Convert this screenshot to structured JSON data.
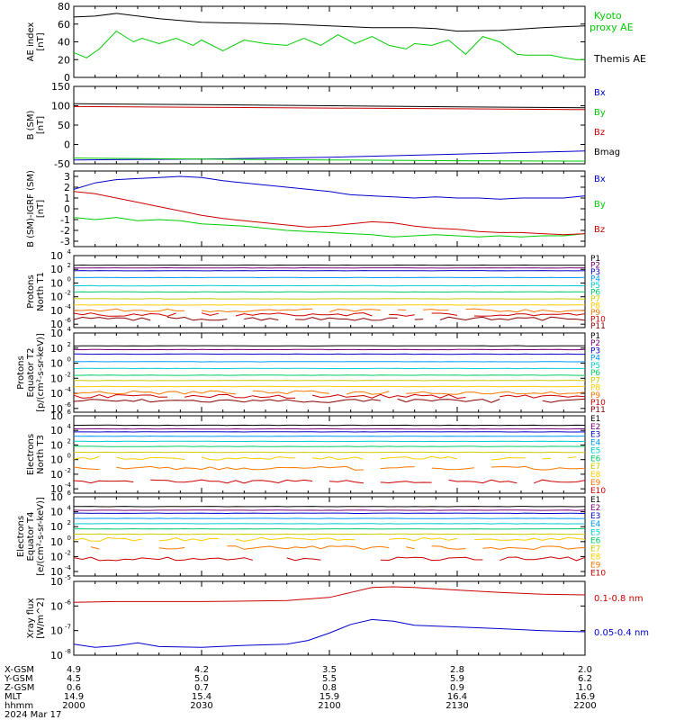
{
  "colors": {
    "black": "#000000",
    "green": "#00cc00",
    "blue": "#0000cc",
    "red": "#cc0000",
    "ch": [
      "#000000",
      "#7a007a",
      "#0000cc",
      "#0099ff",
      "#00cccc",
      "#00cc66",
      "#cccc00",
      "#ffcc00",
      "#ff7700",
      "#cc0000",
      "#880000"
    ]
  },
  "time_axis": {
    "ticks": [
      2000,
      2030,
      2100,
      2130,
      2200
    ],
    "ephemeris": [
      {
        "label": "X-GSM",
        "values": [
          "4.9",
          "4.2",
          "3.5",
          "2.8",
          "2.0"
        ]
      },
      {
        "label": "Y-GSM",
        "values": [
          "4.5",
          "5.0",
          "5.5",
          "5.9",
          "6.2"
        ]
      },
      {
        "label": "Z-GSM",
        "values": [
          "0.6",
          "0.7",
          "0.8",
          "0.9",
          "1.0"
        ]
      },
      {
        "label": "MLT",
        "values": [
          "14.9",
          "15.4",
          "15.9",
          "16.4",
          "16.9"
        ]
      },
      {
        "label": "hhmm",
        "values": [
          "2000",
          "2030",
          "2100",
          "2130",
          "2200"
        ]
      }
    ],
    "date": "2024 Mar 17"
  },
  "chart_data": [
    {
      "type": "line",
      "ylabel": [
        "AE index",
        "[nT]"
      ],
      "ylim": [
        0,
        80
      ],
      "yticks": [
        "0",
        "20",
        "40",
        "60",
        "80"
      ],
      "series": [
        {
          "name": "Kyoto proxy AE",
          "color": "green",
          "x": [
            0,
            3,
            6,
            10,
            14,
            16,
            20,
            24,
            28,
            30,
            35,
            40,
            45,
            50,
            54,
            58,
            62,
            66,
            70,
            74,
            78,
            80,
            84,
            88,
            92,
            96,
            100,
            104,
            106,
            108,
            112,
            115,
            118,
            120
          ],
          "y": [
            28,
            22,
            32,
            52,
            40,
            44,
            38,
            44,
            36,
            42,
            30,
            42,
            38,
            36,
            44,
            36,
            48,
            38,
            46,
            36,
            32,
            38,
            36,
            42,
            26,
            46,
            40,
            26,
            25,
            25,
            25,
            22,
            20,
            20
          ]
        },
        {
          "name": "Themis AE",
          "color": "black",
          "x": [
            0,
            5,
            10,
            20,
            30,
            40,
            50,
            60,
            70,
            80,
            85,
            90,
            100,
            110,
            120
          ],
          "y": [
            68,
            69,
            72,
            66,
            62,
            61,
            60,
            58,
            56,
            56,
            55,
            52,
            53,
            56,
            58
          ]
        }
      ]
    },
    {
      "type": "line",
      "ylabel": [
        "B (SM)",
        "[nT]"
      ],
      "ylim": [
        -50,
        150
      ],
      "yticks": [
        "-50",
        "0",
        "50",
        "100",
        "150"
      ],
      "series": [
        {
          "name": "Bx",
          "color": "blue",
          "x": [
            0,
            30,
            60,
            90,
            120
          ],
          "y": [
            -40,
            -38,
            -33,
            -25,
            -17
          ]
        },
        {
          "name": "By",
          "color": "green",
          "x": [
            0,
            30,
            60,
            90,
            120
          ],
          "y": [
            -35,
            -38,
            -40,
            -42,
            -43
          ]
        },
        {
          "name": "Bz",
          "color": "red",
          "x": [
            0,
            30,
            60,
            90,
            120
          ],
          "y": [
            98,
            96,
            94,
            92,
            90
          ]
        },
        {
          "name": "Bmag",
          "color": "black",
          "x": [
            0,
            30,
            60,
            90,
            120
          ],
          "y": [
            105,
            103,
            100,
            97,
            95
          ]
        }
      ]
    },
    {
      "type": "line",
      "ylabel": [
        "B (SM)-IGRF (SM)",
        "[nT]"
      ],
      "ylim": [
        -3.5,
        3.5
      ],
      "yticks": [
        "-3",
        "-2",
        "-1",
        "0",
        "1",
        "2",
        "3"
      ],
      "series": [
        {
          "name": "Bx",
          "color": "blue",
          "x": [
            0,
            5,
            10,
            15,
            20,
            25,
            30,
            35,
            40,
            45,
            50,
            55,
            60,
            65,
            70,
            75,
            80,
            85,
            90,
            95,
            100,
            105,
            110,
            115,
            120
          ],
          "y": [
            1.8,
            2.4,
            2.7,
            2.8,
            2.9,
            3.0,
            2.9,
            2.6,
            2.4,
            2.2,
            2.0,
            1.8,
            1.6,
            1.3,
            1.2,
            1.1,
            1.0,
            1.1,
            1.0,
            1.0,
            0.9,
            1.0,
            1.0,
            1.0,
            1.2
          ]
        },
        {
          "name": "By",
          "color": "green",
          "x": [
            0,
            5,
            10,
            15,
            20,
            25,
            30,
            35,
            40,
            45,
            50,
            55,
            60,
            65,
            70,
            75,
            80,
            85,
            90,
            95,
            100,
            105,
            110,
            115,
            120
          ],
          "y": [
            -0.8,
            -1.0,
            -0.8,
            -1.1,
            -1.0,
            -1.1,
            -1.4,
            -1.5,
            -1.6,
            -1.8,
            -2.0,
            -2.1,
            -2.2,
            -2.3,
            -2.4,
            -2.6,
            -2.5,
            -2.4,
            -2.5,
            -2.6,
            -2.5,
            -2.6,
            -2.5,
            -2.5,
            -2.3
          ]
        },
        {
          "name": "Bz",
          "color": "red",
          "x": [
            0,
            5,
            10,
            15,
            20,
            25,
            30,
            35,
            40,
            45,
            50,
            55,
            60,
            65,
            70,
            75,
            80,
            85,
            90,
            95,
            100,
            105,
            110,
            115,
            120
          ],
          "y": [
            1.6,
            1.4,
            1.0,
            0.6,
            0.2,
            -0.2,
            -0.6,
            -0.9,
            -1.1,
            -1.3,
            -1.5,
            -1.7,
            -1.6,
            -1.4,
            -1.2,
            -1.3,
            -1.6,
            -1.8,
            -1.9,
            -2.1,
            -2.2,
            -2.2,
            -2.3,
            -2.4,
            -2.3
          ]
        }
      ]
    },
    {
      "type": "line",
      "ylabel": [
        "Protons",
        "North T1"
      ],
      "log": true,
      "ylim": [
        -6.5,
        4
      ],
      "yticks": [
        "10",
        "10",
        "10",
        "10",
        "10",
        "10"
      ],
      "ytick_exponents": [
        "4",
        "2",
        "0",
        "-2",
        "-4",
        "-6"
      ],
      "channels": [
        "P1",
        "P2",
        "P3",
        "P4",
        "P5",
        "P6",
        "P7",
        "P8",
        "P9",
        "P10",
        "P11"
      ],
      "levels": [
        2.6,
        2.2,
        1.8,
        0.8,
        -0.4,
        -1.3,
        -2.3,
        -3.2,
        -4.0,
        -4.6,
        -5.2
      ]
    },
    {
      "type": "line",
      "ylabel": [
        "Protons",
        "Equator T2",
        "[p/(cm²-s-sr-keV)]"
      ],
      "log": true,
      "ylim": [
        -6.5,
        4
      ],
      "yticks": [
        "10",
        "10",
        "10",
        "10",
        "10",
        "10"
      ],
      "ytick_exponents": [
        "4",
        "2",
        "0",
        "-2",
        "-4",
        "-6"
      ],
      "channels": [
        "P1",
        "P2",
        "P3",
        "P4",
        "P5",
        "P6",
        "P7",
        "P8",
        "P9",
        "P10",
        "P11"
      ],
      "levels": [
        2.3,
        1.8,
        1.2,
        0.2,
        -0.7,
        -1.6,
        -2.3,
        -3.1,
        -3.9,
        -4.4,
        -5.0
      ]
    },
    {
      "type": "line",
      "ylabel": [
        "Electrons",
        "North T3"
      ],
      "log": true,
      "ylim": [
        -4.6,
        6
      ],
      "yticks": [
        "10",
        "10",
        "10",
        "10",
        "10",
        "10"
      ],
      "ytick_exponents": [
        "6",
        "4",
        "2",
        "0",
        "-2",
        "-4"
      ],
      "channels": [
        "E1",
        "E2",
        "E3",
        "E4",
        "E5",
        "E6",
        "E7",
        "E8",
        "E9",
        "E10"
      ],
      "levels": [
        4.7,
        4.2,
        3.8,
        3.2,
        2.5,
        1.8,
        1.0,
        0.2,
        -1.2,
        -3.0
      ]
    },
    {
      "type": "line",
      "ylabel": [
        "Electrons",
        "Equator T4",
        "[e/(cm²-s-sr-keV)]"
      ],
      "log": true,
      "ylim": [
        -4.6,
        6
      ],
      "yticks": [
        "10",
        "10",
        "10",
        "10",
        "10",
        "10"
      ],
      "ytick_exponents": [
        "6",
        "4",
        "2",
        "0",
        "-2",
        "-4"
      ],
      "channels": [
        "E1",
        "E2",
        "E3",
        "E4",
        "E5",
        "E6",
        "E7",
        "E8",
        "E9",
        "E10"
      ],
      "levels": [
        4.7,
        4.2,
        3.8,
        3.1,
        2.4,
        1.7,
        1.0,
        0.3,
        -0.8,
        -2.3
      ]
    },
    {
      "type": "line",
      "ylabel": [
        "Xray flux",
        "[W/m^2]"
      ],
      "log": true,
      "ylim": [
        -8,
        -5
      ],
      "yticks": [
        "10",
        "10",
        "10",
        "10"
      ],
      "ytick_exponents": [
        "-5",
        "-6",
        "-7",
        "-8"
      ],
      "series": [
        {
          "name": "0.1-0.8 nm",
          "color": "red",
          "x": [
            0,
            10,
            20,
            30,
            40,
            50,
            60,
            65,
            70,
            75,
            80,
            90,
            100,
            110,
            120
          ],
          "y": [
            -5.85,
            -5.82,
            -5.82,
            -5.82,
            -5.8,
            -5.78,
            -5.65,
            -5.45,
            -5.25,
            -5.22,
            -5.25,
            -5.35,
            -5.45,
            -5.52,
            -5.55
          ]
        },
        {
          "name": "0.05-0.4 nm",
          "color": "blue",
          "x": [
            0,
            5,
            10,
            15,
            20,
            30,
            40,
            50,
            55,
            60,
            65,
            70,
            75,
            80,
            90,
            100,
            110,
            120
          ],
          "y": [
            -7.55,
            -7.68,
            -7.62,
            -7.5,
            -7.65,
            -7.68,
            -7.6,
            -7.55,
            -7.4,
            -7.1,
            -6.75,
            -6.55,
            -6.62,
            -6.78,
            -6.85,
            -6.92,
            -7.0,
            -7.05
          ]
        }
      ]
    }
  ]
}
